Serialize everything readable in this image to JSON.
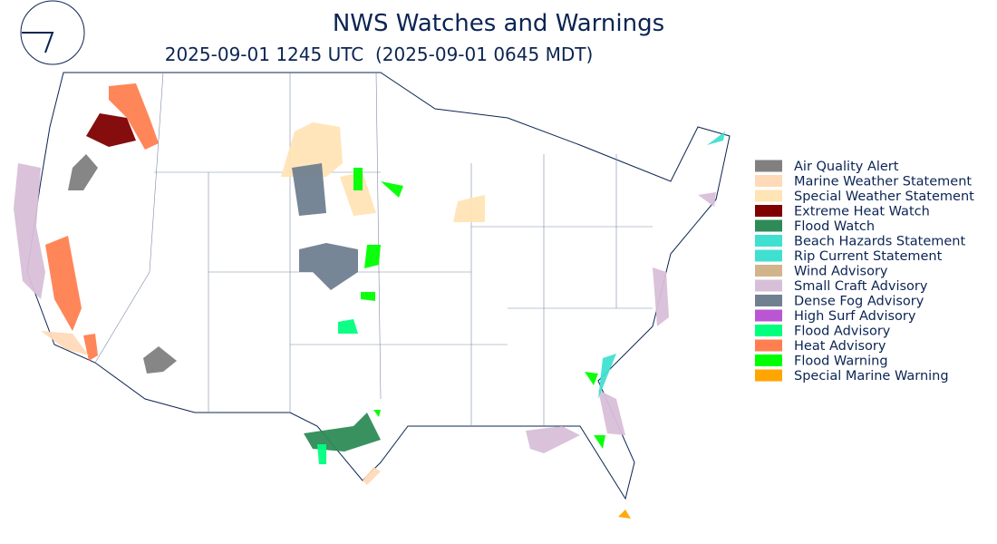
{
  "header": {
    "title": "NWS Watches and Warnings",
    "subtitle": "2025-09-01 1245 UTC  (2025-09-01 0645 MDT)"
  },
  "legend": [
    {
      "name": "Air Quality Alert",
      "color": "#808080"
    },
    {
      "name": "Marine Weather Statement",
      "color": "#ffdab9"
    },
    {
      "name": "Special Weather Statement",
      "color": "#ffe4b5"
    },
    {
      "name": "Extreme Heat Watch",
      "color": "#800000"
    },
    {
      "name": "Flood Watch",
      "color": "#2e8b57"
    },
    {
      "name": "Beach Hazards Statement",
      "color": "#40e0d0"
    },
    {
      "name": "Rip Current Statement",
      "color": "#40e0d0"
    },
    {
      "name": "Wind Advisory",
      "color": "#d2b48c"
    },
    {
      "name": "Small Craft Advisory",
      "color": "#d8bfd8"
    },
    {
      "name": "Dense Fog Advisory",
      "color": "#708090"
    },
    {
      "name": "High Surf Advisory",
      "color": "#ba55d3"
    },
    {
      "name": "Flood Advisory",
      "color": "#00ff7f"
    },
    {
      "name": "Heat Advisory",
      "color": "#ff7f50"
    },
    {
      "name": "Flood Warning",
      "color": "#00ff00"
    },
    {
      "name": "Special Marine Warning",
      "color": "#ffa500"
    }
  ]
}
